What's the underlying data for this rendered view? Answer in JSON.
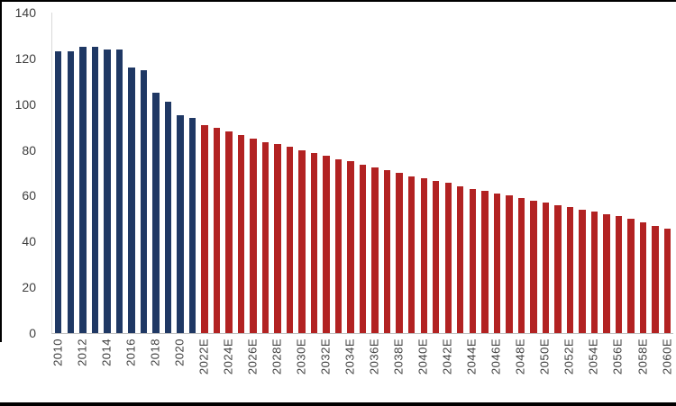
{
  "chart_data": {
    "type": "bar",
    "title": "",
    "xlabel": "",
    "ylabel": "",
    "ylim": [
      0,
      140
    ],
    "yticks": [
      0,
      20,
      40,
      60,
      80,
      100,
      120,
      140
    ],
    "grid": false,
    "legend": "none",
    "estimate_suffix": "E",
    "colors": {
      "historical": "#1f3864",
      "estimate": "#b22222"
    },
    "categories": [
      "2010",
      "2011",
      "2012",
      "2013",
      "2014",
      "2015",
      "2016",
      "2017",
      "2018",
      "2019",
      "2020",
      "2021",
      "2022E",
      "2023E",
      "2024E",
      "2025E",
      "2026E",
      "2027E",
      "2028E",
      "2029E",
      "2030E",
      "2031E",
      "2032E",
      "2033E",
      "2034E",
      "2035E",
      "2036E",
      "2037E",
      "2038E",
      "2039E",
      "2040E",
      "2041E",
      "2042E",
      "2043E",
      "2044E",
      "2045E",
      "2046E",
      "2047E",
      "2048E",
      "2049E",
      "2050E",
      "2051E",
      "2052E",
      "2053E",
      "2054E",
      "2055E",
      "2056E",
      "2057E",
      "2058E",
      "2059E",
      "2060E"
    ],
    "values": [
      123,
      123,
      125,
      125,
      124,
      124,
      116,
      115,
      105,
      101,
      95,
      94,
      91,
      89.5,
      88,
      86.5,
      85,
      83.5,
      82.5,
      81.5,
      80,
      78.5,
      77.5,
      76,
      75,
      73.5,
      72.5,
      71,
      70,
      68.5,
      67.5,
      66.5,
      65.5,
      64,
      63,
      62,
      61,
      60,
      59,
      58,
      57,
      56,
      55,
      54,
      53,
      52,
      51,
      50,
      48.5,
      47,
      45.5
    ],
    "x_tick_labels": [
      "2010",
      "2012",
      "2014",
      "2016",
      "2018",
      "2020",
      "2022E",
      "2024E",
      "2026E",
      "2028E",
      "2030E",
      "2032E",
      "2034E",
      "2036E",
      "2038E",
      "2040E",
      "2042E",
      "2044E",
      "2046E",
      "2048E",
      "2050E",
      "2052E",
      "2054E",
      "2056E",
      "2058E",
      "2060E"
    ]
  }
}
